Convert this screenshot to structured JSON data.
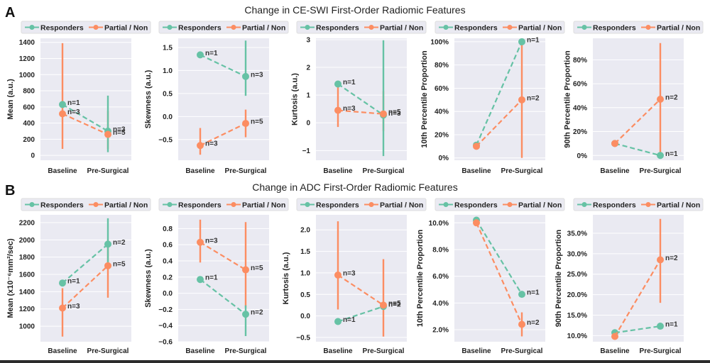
{
  "rows": [
    {
      "letter": "A",
      "title": "Change in CE-SWI First-Order Radiomic Features"
    },
    {
      "letter": "B",
      "title": "Change in ADC First-Order Radiomic Features"
    }
  ],
  "colors": {
    "responders": "#66c2a5",
    "partial_non": "#fc8d62",
    "plot_bg": "#eaeaf2",
    "grid": "#ffffff"
  },
  "legend": {
    "responders": "Responders",
    "partial_non": "Partial / Non"
  },
  "chart_data": [
    {
      "type": "line",
      "row": 0,
      "col": 0,
      "ylabel": "Mean (a.u.)",
      "categories": [
        "Baseline",
        "Pre-Surgical"
      ],
      "ylim": [
        -60,
        1450
      ],
      "yticks": [
        0,
        200,
        400,
        600,
        800,
        1000,
        1200,
        1400
      ],
      "ytick_labels": [
        "0",
        "200",
        "400",
        "600",
        "800",
        "1000",
        "1200",
        "1400"
      ],
      "series": [
        {
          "name": "Responders",
          "values": [
            630,
            300
          ],
          "err_low": [
            630,
            40
          ],
          "err_high": [
            630,
            740
          ],
          "n": [
            "n=1",
            "n=3"
          ]
        },
        {
          "name": "Partial / Non",
          "values": [
            515,
            260
          ],
          "err_low": [
            80,
            80
          ],
          "err_high": [
            1390,
            550
          ],
          "n": [
            "n=3",
            "n=5"
          ]
        }
      ]
    },
    {
      "type": "line",
      "row": 0,
      "col": 1,
      "ylabel": "Skewness (a.u.)",
      "categories": [
        "Baseline",
        "Pre-Surgical"
      ],
      "ylim": [
        -0.95,
        1.7
      ],
      "yticks": [
        -0.5,
        0.0,
        0.5,
        1.0,
        1.5
      ],
      "ytick_labels": [
        "−0.5",
        "0.0",
        "0.5",
        "1.0",
        "1.5"
      ],
      "series": [
        {
          "name": "Responders",
          "values": [
            1.34,
            0.87
          ],
          "err_low": [
            1.34,
            0.45
          ],
          "err_high": [
            1.34,
            1.65
          ],
          "n": [
            "n=1",
            "n=3"
          ]
        },
        {
          "name": "Partial / Non",
          "values": [
            -0.63,
            -0.15
          ],
          "err_low": [
            -0.83,
            -0.45
          ],
          "err_high": [
            -0.25,
            0.15
          ],
          "n": [
            "n=3",
            "n=5"
          ]
        }
      ]
    },
    {
      "type": "line",
      "row": 0,
      "col": 2,
      "ylabel": "Kurtosis (a.u.)",
      "categories": [
        "Baseline",
        "Pre-Surgical"
      ],
      "ylim": [
        -1.35,
        3.05
      ],
      "yticks": [
        -1,
        0,
        1,
        2,
        3
      ],
      "ytick_labels": [
        "−1",
        "0",
        "1",
        "2",
        "3"
      ],
      "series": [
        {
          "name": "Responders",
          "values": [
            1.4,
            0.28
          ],
          "err_low": [
            1.4,
            -1.2
          ],
          "err_high": [
            1.4,
            2.98
          ],
          "n": [
            "n=1",
            "n=3"
          ]
        },
        {
          "name": "Partial / Non",
          "values": [
            0.45,
            0.32
          ],
          "err_low": [
            -0.15,
            -0.3
          ],
          "err_high": [
            1.35,
            1.15
          ],
          "n": [
            "n=3",
            "n=5"
          ]
        }
      ]
    },
    {
      "type": "line",
      "row": 0,
      "col": 3,
      "ylabel": "10th Percentile Proportion",
      "categories": [
        "Baseline",
        "Pre-Surgical"
      ],
      "ylim": [
        -2,
        103
      ],
      "yticks": [
        0,
        20,
        40,
        60,
        80,
        100
      ],
      "ytick_labels": [
        "0%",
        "20%",
        "40%",
        "60%",
        "80%",
        "100%"
      ],
      "series": [
        {
          "name": "Responders",
          "values": [
            11,
            100
          ],
          "err_low": [
            11,
            100
          ],
          "err_high": [
            11,
            100
          ],
          "n": [
            "",
            "n=1"
          ]
        },
        {
          "name": "Partial / Non",
          "values": [
            10,
            50
          ],
          "err_low": [
            10,
            0
          ],
          "err_high": [
            10,
            100
          ],
          "n": [
            "",
            "n=2"
          ]
        }
      ]
    },
    {
      "type": "line",
      "row": 0,
      "col": 4,
      "ylabel": "90th Percentile Proportion",
      "categories": [
        "Baseline",
        "Pre-Surgical"
      ],
      "ylim": [
        -4,
        98
      ],
      "yticks": [
        0,
        20,
        40,
        60,
        80
      ],
      "ytick_labels": [
        "0%",
        "20%",
        "40%",
        "60%",
        "80%"
      ],
      "series": [
        {
          "name": "Responders",
          "values": [
            10,
            0
          ],
          "err_low": [
            10,
            0
          ],
          "err_high": [
            10,
            0
          ],
          "n": [
            "",
            "n=1"
          ]
        },
        {
          "name": "Partial / Non",
          "values": [
            10,
            47
          ],
          "err_low": [
            10,
            0
          ],
          "err_high": [
            10,
            94
          ],
          "n": [
            "",
            "n=2"
          ]
        }
      ]
    },
    {
      "type": "line",
      "row": 1,
      "col": 0,
      "ylabel": "Mean (x10⁻⁶mm²/sec)",
      "categories": [
        "Baseline",
        "Pre-Surgical"
      ],
      "ylim": [
        820,
        2290
      ],
      "yticks": [
        1000,
        1200,
        1400,
        1600,
        1800,
        2000,
        2200
      ],
      "ytick_labels": [
        "1000",
        "1200",
        "1400",
        "1600",
        "1800",
        "2000",
        "2200"
      ],
      "series": [
        {
          "name": "Responders",
          "values": [
            1500,
            1950
          ],
          "err_low": [
            1500,
            1700
          ],
          "err_high": [
            1500,
            2250
          ],
          "n": [
            "n=1",
            "n=2"
          ]
        },
        {
          "name": "Partial / Non",
          "values": [
            1210,
            1700
          ],
          "err_low": [
            880,
            1330
          ],
          "err_high": [
            1440,
            2000
          ],
          "n": [
            "n=3",
            "n=5"
          ]
        }
      ]
    },
    {
      "type": "line",
      "row": 1,
      "col": 1,
      "ylabel": "Skewness (a.u.)",
      "categories": [
        "Baseline",
        "Pre-Surgical"
      ],
      "ylim": [
        -0.6,
        0.97
      ],
      "yticks": [
        -0.6,
        -0.4,
        -0.2,
        0.0,
        0.2,
        0.4,
        0.6,
        0.8
      ],
      "ytick_labels": [
        "−0.6",
        "−0.4",
        "−0.2",
        "0.0",
        "0.2",
        "0.4",
        "0.6",
        "0.8"
      ],
      "series": [
        {
          "name": "Responders",
          "values": [
            0.17,
            -0.26
          ],
          "err_low": [
            0.17,
            -0.53
          ],
          "err_high": [
            0.17,
            -0.15
          ],
          "n": [
            "n=1",
            "n=2"
          ]
        },
        {
          "name": "Partial / Non",
          "values": [
            0.63,
            0.29
          ],
          "err_low": [
            0.38,
            -0.18
          ],
          "err_high": [
            0.91,
            0.88
          ],
          "n": [
            "n=3",
            "n=5"
          ]
        }
      ]
    },
    {
      "type": "line",
      "row": 1,
      "col": 2,
      "ylabel": "Kurtosis (a.u.)",
      "categories": [
        "Baseline",
        "Pre-Surgical"
      ],
      "ylim": [
        -0.6,
        2.35
      ],
      "yticks": [
        -0.5,
        0.0,
        0.5,
        1.0,
        1.5,
        2.0
      ],
      "ytick_labels": [
        "−0.5",
        "0.0",
        "0.5",
        "1.0",
        "1.5",
        "2.0"
      ],
      "series": [
        {
          "name": "Responders",
          "values": [
            -0.13,
            0.22
          ],
          "err_low": [
            -0.13,
            0.22
          ],
          "err_high": [
            -0.13,
            0.22
          ],
          "n": [
            "n=1",
            "n=2"
          ]
        },
        {
          "name": "Partial / Non",
          "values": [
            0.95,
            0.25
          ],
          "err_low": [
            0.15,
            -0.48
          ],
          "err_high": [
            2.2,
            1.32
          ],
          "n": [
            "n=3",
            "n=5"
          ]
        }
      ]
    },
    {
      "type": "line",
      "row": 1,
      "col": 3,
      "ylabel": "10th Percentile Proportion",
      "categories": [
        "Baseline",
        "Pre-Surgical"
      ],
      "ylim": [
        1.1,
        10.6
      ],
      "yticks": [
        2.0,
        4.0,
        6.0,
        8.0,
        10.0
      ],
      "ytick_labels": [
        "2.0%",
        "4.0%",
        "6.0%",
        "8.0%",
        "10.0%"
      ],
      "series": [
        {
          "name": "Responders",
          "values": [
            10.2,
            4.65
          ],
          "err_low": [
            10.2,
            4.65
          ],
          "err_high": [
            10.2,
            4.65
          ],
          "n": [
            "",
            "n=1"
          ]
        },
        {
          "name": "Partial / Non",
          "values": [
            10.0,
            2.4
          ],
          "err_low": [
            10.0,
            1.5
          ],
          "err_high": [
            10.0,
            3.3
          ],
          "n": [
            "",
            "n=2"
          ]
        }
      ]
    },
    {
      "type": "line",
      "row": 1,
      "col": 4,
      "ylabel": "90th Percentile Proportion",
      "categories": [
        "Baseline",
        "Pre-Surgical"
      ],
      "ylim": [
        8.5,
        39.5
      ],
      "yticks": [
        10,
        15,
        20,
        25,
        30,
        35
      ],
      "ytick_labels": [
        "10.0%",
        "15.0%",
        "20.0%",
        "25.0%",
        "30.0%",
        "35.0%"
      ],
      "series": [
        {
          "name": "Responders",
          "values": [
            10.7,
            12.3
          ],
          "err_low": [
            10.7,
            12.3
          ],
          "err_high": [
            10.7,
            12.3
          ],
          "n": [
            "",
            "n=1"
          ]
        },
        {
          "name": "Partial / Non",
          "values": [
            9.8,
            28.5
          ],
          "err_low": [
            9.8,
            18.0
          ],
          "err_high": [
            9.8,
            38.5
          ],
          "n": [
            "",
            "n=2"
          ]
        }
      ]
    }
  ]
}
